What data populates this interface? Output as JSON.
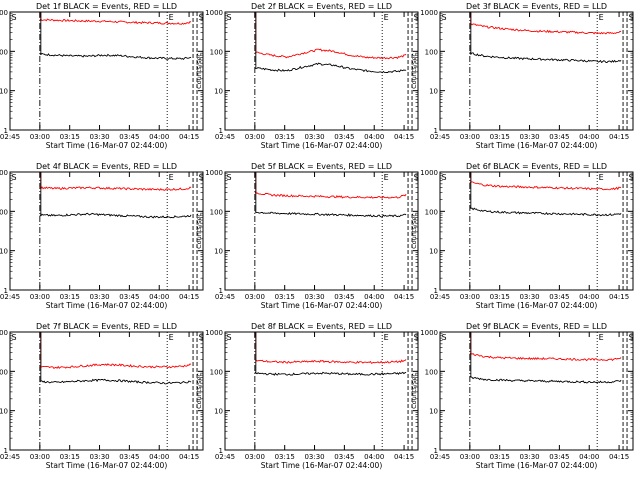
{
  "layout": {
    "rows": 3,
    "cols": 3
  },
  "colors": {
    "events": "#000000",
    "lld": "#ff0000",
    "axes": "#000000",
    "background": "#ffffff"
  },
  "chart_data": [
    {
      "type": "line",
      "title": "Det 1f BLACK = Events, RED = LLD",
      "xlabel": "Start Time (16-Mar-07 02:44:00)",
      "ylabel": "Counts/sec",
      "yscale": "log",
      "ylim": [
        1,
        1000
      ],
      "xlim": [
        "02:45",
        "04:22"
      ],
      "xticks": [
        "02:45",
        "03:00",
        "03:15",
        "03:30",
        "03:45",
        "04:00",
        "04:15"
      ],
      "yticks": [
        "1",
        "10",
        "100",
        "1000"
      ],
      "markers": [
        {
          "label": "S",
          "time": "02:45",
          "style": "solid"
        },
        {
          "label": "",
          "time": "03:00",
          "style": "dashdot"
        },
        {
          "label": "E",
          "time": "04:04",
          "style": "dotted"
        },
        {
          "label": "",
          "time": "04:17",
          "style": "dashed"
        },
        {
          "label": "S",
          "time": "04:19",
          "style": "dashed"
        }
      ],
      "series": [
        {
          "color": "#ff0000",
          "x": [
            "03:00",
            "03:08",
            "03:16",
            "03:24",
            "03:32",
            "03:40",
            "03:48",
            "03:56",
            "04:04",
            "04:12",
            "04:16"
          ],
          "values": [
            640,
            620,
            600,
            590,
            580,
            560,
            540,
            530,
            520,
            510,
            560
          ]
        },
        {
          "color": "#000000",
          "x": [
            "03:00",
            "03:08",
            "03:16",
            "03:24",
            "03:32",
            "03:40",
            "03:48",
            "03:56",
            "04:04",
            "04:12",
            "04:16"
          ],
          "values": [
            85,
            80,
            76,
            75,
            80,
            78,
            72,
            68,
            66,
            65,
            70
          ]
        }
      ]
    },
    {
      "type": "line",
      "title": "Det 2f BLACK = Events, RED = LLD",
      "xlabel": "Start Time (16-Mar-07 02:44:00)",
      "ylabel": "Counts/sec",
      "yscale": "log",
      "ylim": [
        1,
        1000
      ],
      "xlim": [
        "02:45",
        "04:22"
      ],
      "xticks": [
        "02:45",
        "03:00",
        "03:15",
        "03:30",
        "03:45",
        "04:00",
        "04:15"
      ],
      "yticks": [
        "1",
        "10",
        "100",
        "1000"
      ],
      "markers": [
        {
          "label": "S",
          "time": "02:45",
          "style": "solid"
        },
        {
          "label": "",
          "time": "03:00",
          "style": "dashdot"
        },
        {
          "label": "E",
          "time": "04:04",
          "style": "dotted"
        },
        {
          "label": "",
          "time": "04:17",
          "style": "dashed"
        },
        {
          "label": "S",
          "time": "04:19",
          "style": "dashed"
        }
      ],
      "series": [
        {
          "color": "#ff0000",
          "x": [
            "03:00",
            "03:08",
            "03:16",
            "03:24",
            "03:32",
            "03:40",
            "03:48",
            "03:56",
            "04:04",
            "04:12",
            "04:16"
          ],
          "values": [
            95,
            80,
            72,
            90,
            110,
            100,
            80,
            70,
            68,
            70,
            80
          ]
        },
        {
          "color": "#000000",
          "x": [
            "03:00",
            "03:08",
            "03:16",
            "03:24",
            "03:32",
            "03:40",
            "03:48",
            "03:56",
            "04:04",
            "04:12",
            "04:16"
          ],
          "values": [
            38,
            34,
            32,
            40,
            48,
            44,
            36,
            32,
            30,
            31,
            35
          ]
        }
      ]
    },
    {
      "type": "line",
      "title": "Det 3f BLACK = Events, RED = LLD",
      "xlabel": "Start Time (16-Mar-07 02:44:00)",
      "ylabel": "Counts/sec",
      "yscale": "log",
      "ylim": [
        1,
        1000
      ],
      "xlim": [
        "02:45",
        "04:22"
      ],
      "xticks": [
        "02:45",
        "03:00",
        "03:15",
        "03:30",
        "03:45",
        "04:00",
        "04:15"
      ],
      "yticks": [
        "1",
        "10",
        "100",
        "1000"
      ],
      "markers": [
        {
          "label": "S",
          "time": "02:45",
          "style": "solid"
        },
        {
          "label": "",
          "time": "03:00",
          "style": "dashdot"
        },
        {
          "label": "E",
          "time": "04:04",
          "style": "dotted"
        },
        {
          "label": "",
          "time": "04:17",
          "style": "dashed"
        },
        {
          "label": "S",
          "time": "04:19",
          "style": "dashed"
        }
      ],
      "series": [
        {
          "color": "#ff0000",
          "x": [
            "03:00",
            "03:08",
            "03:16",
            "03:24",
            "03:32",
            "03:40",
            "03:48",
            "03:56",
            "04:04",
            "04:12",
            "04:16"
          ],
          "values": [
            500,
            420,
            380,
            350,
            330,
            320,
            310,
            300,
            290,
            290,
            310
          ]
        },
        {
          "color": "#000000",
          "x": [
            "03:00",
            "03:08",
            "03:16",
            "03:24",
            "03:32",
            "03:40",
            "03:48",
            "03:56",
            "04:04",
            "04:12",
            "04:16"
          ],
          "values": [
            90,
            75,
            70,
            66,
            64,
            62,
            60,
            58,
            55,
            55,
            60
          ]
        }
      ]
    },
    {
      "type": "line",
      "title": "Det 4f BLACK = Events, RED = LLD",
      "xlabel": "Start Time (16-Mar-07 02:44:00)",
      "ylabel": "Counts/sec",
      "yscale": "log",
      "ylim": [
        1,
        1000
      ],
      "xlim": [
        "02:45",
        "04:22"
      ],
      "xticks": [
        "02:45",
        "03:00",
        "03:15",
        "03:30",
        "03:45",
        "04:00",
        "04:15"
      ],
      "yticks": [
        "1",
        "10",
        "100",
        "1000"
      ],
      "markers": [
        {
          "label": "S",
          "time": "02:45",
          "style": "solid"
        },
        {
          "label": "",
          "time": "03:00",
          "style": "dashdot"
        },
        {
          "label": "E",
          "time": "04:04",
          "style": "dotted"
        },
        {
          "label": "",
          "time": "04:17",
          "style": "dashed"
        },
        {
          "label": "S",
          "time": "04:19",
          "style": "dashed"
        }
      ],
      "series": [
        {
          "color": "#ff0000",
          "x": [
            "03:00",
            "03:08",
            "03:16",
            "03:24",
            "03:32",
            "03:40",
            "03:48",
            "03:56",
            "04:04",
            "04:12",
            "04:16"
          ],
          "values": [
            400,
            380,
            390,
            400,
            390,
            380,
            370,
            360,
            360,
            370,
            400
          ]
        },
        {
          "color": "#000000",
          "x": [
            "03:00",
            "03:08",
            "03:16",
            "03:24",
            "03:32",
            "03:40",
            "03:48",
            "03:56",
            "04:04",
            "04:12",
            "04:16"
          ],
          "values": [
            80,
            78,
            82,
            85,
            82,
            78,
            75,
            72,
            72,
            74,
            78
          ]
        }
      ]
    },
    {
      "type": "line",
      "title": "Det 5f BLACK = Events, RED = LLD",
      "xlabel": "Start Time (16-Mar-07 02:44:00)",
      "ylabel": "Counts/sec",
      "yscale": "log",
      "ylim": [
        1,
        1000
      ],
      "xlim": [
        "02:45",
        "04:22"
      ],
      "xticks": [
        "02:45",
        "03:00",
        "03:15",
        "03:30",
        "03:45",
        "04:00",
        "04:15"
      ],
      "yticks": [
        "1",
        "10",
        "100",
        "1000"
      ],
      "markers": [
        {
          "label": "S",
          "time": "02:45",
          "style": "solid"
        },
        {
          "label": "",
          "time": "03:00",
          "style": "dashdot"
        },
        {
          "label": "E",
          "time": "04:04",
          "style": "dotted"
        },
        {
          "label": "",
          "time": "04:17",
          "style": "dashed"
        },
        {
          "label": "S",
          "time": "04:19",
          "style": "dashed"
        }
      ],
      "series": [
        {
          "color": "#ff0000",
          "x": [
            "03:00",
            "03:08",
            "03:16",
            "03:24",
            "03:32",
            "03:40",
            "03:48",
            "03:56",
            "04:04",
            "04:12",
            "04:16"
          ],
          "values": [
            300,
            260,
            250,
            245,
            240,
            235,
            230,
            228,
            225,
            228,
            260
          ]
        },
        {
          "color": "#000000",
          "x": [
            "03:00",
            "03:08",
            "03:16",
            "03:24",
            "03:32",
            "03:40",
            "03:48",
            "03:56",
            "04:04",
            "04:12",
            "04:16"
          ],
          "values": [
            95,
            90,
            88,
            86,
            84,
            82,
            80,
            78,
            76,
            76,
            82
          ]
        }
      ]
    },
    {
      "type": "line",
      "title": "Det 6f BLACK = Events, RED = LLD",
      "xlabel": "Start Time (16-Mar-07 02:44:00)",
      "ylabel": "Counts/sec",
      "yscale": "log",
      "ylim": [
        1,
        1000
      ],
      "xlim": [
        "02:45",
        "04:22"
      ],
      "xticks": [
        "02:45",
        "03:00",
        "03:15",
        "03:30",
        "03:45",
        "04:00",
        "04:15"
      ],
      "yticks": [
        "1",
        "10",
        "100",
        "1000"
      ],
      "markers": [
        {
          "label": "S",
          "time": "02:45",
          "style": "solid"
        },
        {
          "label": "",
          "time": "03:00",
          "style": "dashdot"
        },
        {
          "label": "E",
          "time": "04:04",
          "style": "dotted"
        },
        {
          "label": "",
          "time": "04:17",
          "style": "dashed"
        },
        {
          "label": "S",
          "time": "04:19",
          "style": "dashed"
        }
      ],
      "series": [
        {
          "color": "#ff0000",
          "x": [
            "03:00",
            "03:08",
            "03:16",
            "03:24",
            "03:32",
            "03:40",
            "03:48",
            "03:56",
            "04:04",
            "04:12",
            "04:16"
          ],
          "values": [
            550,
            460,
            430,
            420,
            410,
            400,
            390,
            380,
            370,
            370,
            400
          ]
        },
        {
          "color": "#000000",
          "x": [
            "03:00",
            "03:08",
            "03:16",
            "03:24",
            "03:32",
            "03:40",
            "03:48",
            "03:56",
            "04:04",
            "04:12",
            "04:16"
          ],
          "values": [
            120,
            100,
            95,
            92,
            90,
            88,
            86,
            84,
            82,
            82,
            88
          ]
        }
      ]
    },
    {
      "type": "line",
      "title": "Det 7f BLACK = Events, RED = LLD",
      "xlabel": "Start Time (16-Mar-07 02:44:00)",
      "ylabel": "Counts/sec",
      "yscale": "log",
      "ylim": [
        1,
        1000
      ],
      "xlim": [
        "02:45",
        "04:22"
      ],
      "xticks": [
        "02:45",
        "03:00",
        "03:15",
        "03:30",
        "03:45",
        "04:00",
        "04:15"
      ],
      "yticks": [
        "1",
        "10",
        "100",
        "1000"
      ],
      "markers": [
        {
          "label": "S",
          "time": "02:45",
          "style": "solid"
        },
        {
          "label": "",
          "time": "03:00",
          "style": "dashdot"
        },
        {
          "label": "E",
          "time": "04:04",
          "style": "dotted"
        },
        {
          "label": "",
          "time": "04:17",
          "style": "dashed"
        },
        {
          "label": "S",
          "time": "04:19",
          "style": "dashed"
        }
      ],
      "series": [
        {
          "color": "#ff0000",
          "x": [
            "03:00",
            "03:08",
            "03:16",
            "03:24",
            "03:32",
            "03:40",
            "03:48",
            "03:56",
            "04:04",
            "04:12",
            "04:16"
          ],
          "values": [
            130,
            125,
            130,
            140,
            150,
            145,
            135,
            130,
            130,
            135,
            150
          ]
        },
        {
          "color": "#000000",
          "x": [
            "03:00",
            "03:08",
            "03:16",
            "03:24",
            "03:32",
            "03:40",
            "03:48",
            "03:56",
            "04:04",
            "04:12",
            "04:16"
          ],
          "values": [
            55,
            52,
            55,
            58,
            60,
            58,
            54,
            52,
            50,
            52,
            56
          ]
        }
      ]
    },
    {
      "type": "line",
      "title": "Det 8f BLACK = Events, RED = LLD",
      "xlabel": "Start Time (16-Mar-07 02:44:00)",
      "ylabel": "Counts/sec",
      "yscale": "log",
      "ylim": [
        1,
        1000
      ],
      "xlim": [
        "02:45",
        "04:22"
      ],
      "xticks": [
        "02:45",
        "03:00",
        "03:15",
        "03:30",
        "03:45",
        "04:00",
        "04:15"
      ],
      "yticks": [
        "1",
        "10",
        "100",
        "1000"
      ],
      "markers": [
        {
          "label": "S",
          "time": "02:45",
          "style": "solid"
        },
        {
          "label": "",
          "time": "03:00",
          "style": "dashdot"
        },
        {
          "label": "E",
          "time": "04:04",
          "style": "dotted"
        },
        {
          "label": "",
          "time": "04:17",
          "style": "dashed"
        },
        {
          "label": "S",
          "time": "04:19",
          "style": "dashed"
        }
      ],
      "series": [
        {
          "color": "#ff0000",
          "x": [
            "03:00",
            "03:08",
            "03:16",
            "03:24",
            "03:32",
            "03:40",
            "03:48",
            "03:56",
            "04:04",
            "04:12",
            "04:16"
          ],
          "values": [
            190,
            175,
            170,
            175,
            180,
            175,
            170,
            168,
            170,
            175,
            190
          ]
        },
        {
          "color": "#000000",
          "x": [
            "03:00",
            "03:08",
            "03:16",
            "03:24",
            "03:32",
            "03:40",
            "03:48",
            "03:56",
            "04:04",
            "04:12",
            "04:16"
          ],
          "values": [
            90,
            85,
            84,
            86,
            90,
            88,
            85,
            84,
            86,
            88,
            92
          ]
        }
      ]
    },
    {
      "type": "line",
      "title": "Det 9f BLACK = Events, RED = LLD",
      "xlabel": "Start Time (16-Mar-07 02:44:00)",
      "ylabel": "Counts/sec",
      "yscale": "log",
      "ylim": [
        1,
        1000
      ],
      "xlim": [
        "02:45",
        "04:22"
      ],
      "xticks": [
        "02:45",
        "03:00",
        "03:15",
        "03:30",
        "03:45",
        "04:00",
        "04:15"
      ],
      "yticks": [
        "1",
        "10",
        "100",
        "1000"
      ],
      "markers": [
        {
          "label": "S",
          "time": "02:45",
          "style": "solid"
        },
        {
          "label": "",
          "time": "03:00",
          "style": "dashdot"
        },
        {
          "label": "E",
          "time": "04:04",
          "style": "dotted"
        },
        {
          "label": "",
          "time": "04:17",
          "style": "dashed"
        },
        {
          "label": "S",
          "time": "04:19",
          "style": "dashed"
        }
      ],
      "series": [
        {
          "color": "#ff0000",
          "x": [
            "03:00",
            "03:08",
            "03:16",
            "03:24",
            "03:32",
            "03:40",
            "03:48",
            "03:56",
            "04:04",
            "04:12",
            "04:16"
          ],
          "values": [
            280,
            235,
            220,
            215,
            210,
            210,
            205,
            200,
            198,
            200,
            220
          ]
        },
        {
          "color": "#000000",
          "x": [
            "03:00",
            "03:08",
            "03:16",
            "03:24",
            "03:32",
            "03:40",
            "03:48",
            "03:56",
            "04:04",
            "04:12",
            "04:16"
          ],
          "values": [
            70,
            62,
            60,
            58,
            57,
            56,
            55,
            54,
            53,
            54,
            58
          ]
        }
      ]
    }
  ]
}
